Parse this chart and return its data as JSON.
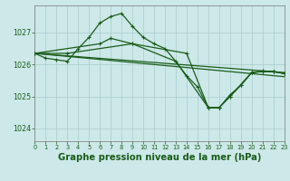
{
  "background_color": "#cce8e8",
  "grid_color": "#aacccc",
  "line_color": "#1a5c1a",
  "title": "Graphe pression niveau de la mer (hPa)",
  "xlim": [
    0,
    23
  ],
  "ylim": [
    1023.6,
    1027.85
  ],
  "xticks": [
    0,
    1,
    2,
    3,
    4,
    5,
    6,
    7,
    8,
    9,
    10,
    11,
    12,
    13,
    14,
    15,
    16,
    17,
    18,
    19,
    20,
    21,
    22,
    23
  ],
  "yticks": [
    1024,
    1025,
    1026,
    1027
  ],
  "series": [
    {
      "x": [
        0,
        23
      ],
      "y": [
        1026.35,
        1025.75
      ],
      "marker": false,
      "lw": 0.9
    },
    {
      "x": [
        0,
        23
      ],
      "y": [
        1026.35,
        1025.62
      ],
      "marker": false,
      "lw": 0.9
    },
    {
      "x": [
        0,
        1,
        2,
        3,
        4,
        5,
        6,
        7,
        8,
        9,
        10,
        11,
        12,
        13,
        14,
        15,
        16,
        17,
        18,
        19,
        20,
        21,
        22,
        23
      ],
      "y": [
        1026.35,
        1026.2,
        1026.15,
        1026.1,
        1026.5,
        1026.85,
        1027.3,
        1027.5,
        1027.6,
        1027.2,
        1026.85,
        1026.65,
        1026.5,
        1026.1,
        1025.65,
        1025.3,
        1024.65,
        1024.65,
        1025.0,
        1025.35,
        1025.75,
        1025.8,
        1025.78,
        1025.72
      ],
      "marker": true,
      "lw": 0.9
    },
    {
      "x": [
        0,
        3,
        9,
        14,
        16,
        17,
        18,
        20,
        21,
        22,
        23
      ],
      "y": [
        1026.35,
        1026.35,
        1026.65,
        1026.35,
        1024.65,
        1024.65,
        1025.0,
        1025.75,
        1025.78,
        1025.78,
        1025.72
      ],
      "marker": true,
      "lw": 0.9
    },
    {
      "x": [
        0,
        6,
        7,
        9,
        13,
        16,
        17,
        18,
        19,
        20,
        21,
        22,
        23
      ],
      "y": [
        1026.35,
        1026.65,
        1026.82,
        1026.65,
        1026.1,
        1024.65,
        1024.65,
        1025.05,
        1025.35,
        1025.75,
        1025.78,
        1025.78,
        1025.72
      ],
      "marker": true,
      "lw": 0.9
    }
  ]
}
